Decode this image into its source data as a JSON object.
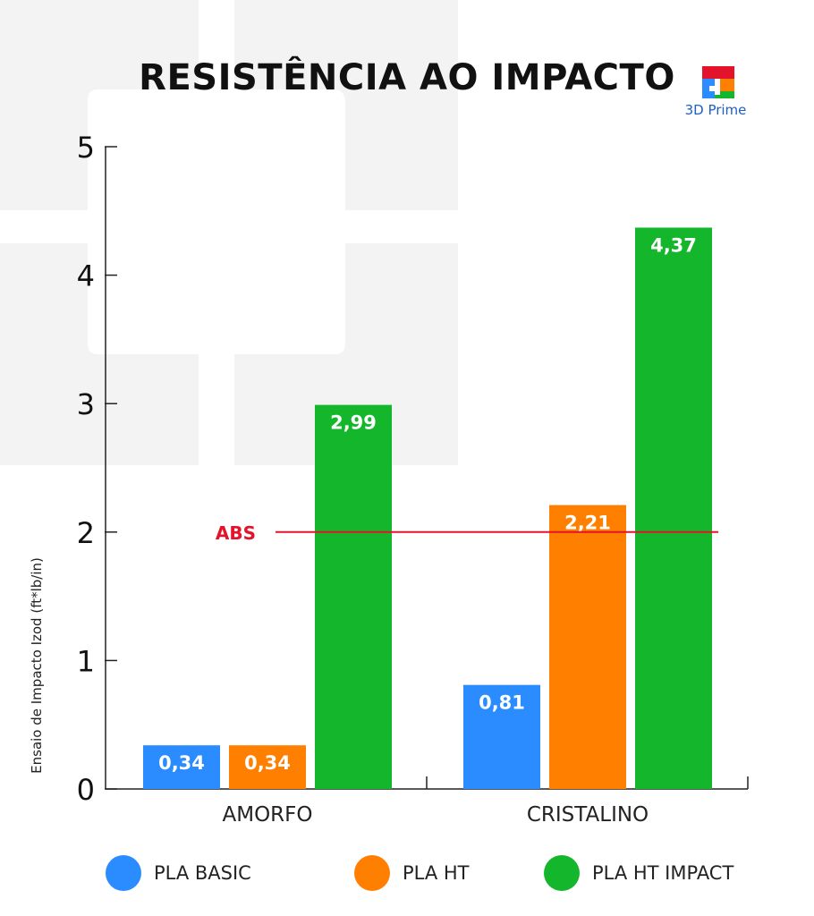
{
  "header": {
    "title": "RESISTÊNCIA AO IMPACTO",
    "logo_text": "3D Prime"
  },
  "colors": {
    "pla_basic": "#2a8cff",
    "pla_ht": "#ff7f00",
    "pla_ht_impact": "#14b62c",
    "abs_line": "#e3132b",
    "axis": "#222222",
    "bg_shape": "#f2f2f2"
  },
  "chart_data": {
    "type": "bar",
    "categories": [
      "AMORFO",
      "CRISTALINO"
    ],
    "series": [
      {
        "name": "PLA BASIC",
        "values": [
          0.34,
          0.81
        ],
        "labels": [
          "0,34",
          "0,81"
        ],
        "color": "#2a8cff"
      },
      {
        "name": "PLA HT",
        "values": [
          0.34,
          2.21
        ],
        "labels": [
          "0,34",
          "2,21"
        ],
        "color": "#ff7f00"
      },
      {
        "name": "PLA HT IMPACT",
        "values": [
          2.99,
          4.37
        ],
        "labels": [
          "2,99",
          "4,37"
        ],
        "color": "#14b62c"
      }
    ],
    "title": "RESISTÊNCIA AO IMPACTO",
    "xlabel": "",
    "ylabel": "Ensaio de Impacto Izod (ft*lb/in)",
    "ylim": [
      0,
      5
    ],
    "yticks": [
      "0",
      "1",
      "2",
      "3",
      "4",
      "5"
    ],
    "reference_line": {
      "label": "ABS",
      "value": 2
    },
    "grid": false,
    "legend": "bottom"
  }
}
